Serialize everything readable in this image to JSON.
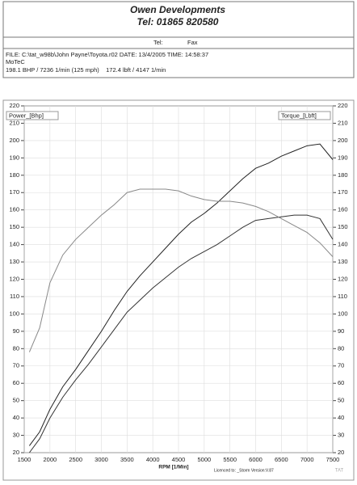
{
  "header": {
    "company": "Owen Developments",
    "tel": "Tel: 01865 820580",
    "tel_label": "Tel:",
    "fax_label": "Fax",
    "file_line": "FILE: C:\\tat_w98b\\John Payne\\Toyota.r02  DATE: 13/4/2005  TIME: 14:58:37",
    "engine": "MoTeC",
    "summary": "198.1 BHP / 7236 1/min (125 mph)    172.4 lbft / 4147 1/min"
  },
  "footer": {
    "licence": "Licenced to: _Storm   Version:V.87",
    "logo": "TAT"
  },
  "chart_data": {
    "type": "line",
    "x_label": "RPM [1/Min]",
    "x": [
      1600,
      1800,
      2000,
      2250,
      2500,
      2750,
      3000,
      3250,
      3500,
      3750,
      4000,
      4250,
      4500,
      4750,
      5000,
      5250,
      5500,
      5750,
      6000,
      6250,
      6500,
      6750,
      7000,
      7250,
      7500
    ],
    "series": [
      {
        "name": "Power_[Bhp]",
        "color": "#222222",
        "values": [
          24,
          32,
          45,
          58,
          68,
          79,
          90,
          102,
          113,
          122,
          130,
          138,
          146,
          153,
          158,
          164,
          171,
          178,
          184,
          187,
          191,
          194,
          197,
          198,
          189
        ]
      },
      {
        "color": "#333333",
        "values": [
          20,
          28,
          40,
          52,
          62,
          71,
          81,
          91,
          101,
          108,
          115,
          121,
          127,
          132,
          136,
          140,
          145,
          150,
          154,
          155,
          156,
          157,
          157,
          155,
          143
        ]
      },
      {
        "name": "Torque_[Lbft]",
        "color": "#888888",
        "axis": "y2",
        "values": [
          78,
          92,
          118,
          134,
          143,
          150,
          157,
          163,
          170,
          172,
          172,
          172,
          171,
          168,
          166,
          165,
          165,
          164,
          162,
          159,
          155,
          151,
          147,
          141,
          133
        ]
      }
    ],
    "xlim": [
      1500,
      7500
    ],
    "xticks": [
      1500,
      2000,
      2500,
      3000,
      3500,
      4000,
      4500,
      5000,
      5500,
      6000,
      6500,
      7000,
      7500
    ],
    "ylim": [
      20,
      220
    ],
    "yticks": [
      20,
      30,
      40,
      50,
      60,
      70,
      80,
      90,
      100,
      110,
      120,
      130,
      140,
      150,
      160,
      170,
      180,
      190,
      200,
      210,
      220
    ],
    "y2lim": [
      20,
      220
    ],
    "y2ticks": [
      20,
      30,
      40,
      50,
      60,
      70,
      80,
      90,
      100,
      110,
      120,
      130,
      140,
      150,
      160,
      170,
      180,
      190,
      200,
      210,
      220
    ],
    "grid": true
  }
}
